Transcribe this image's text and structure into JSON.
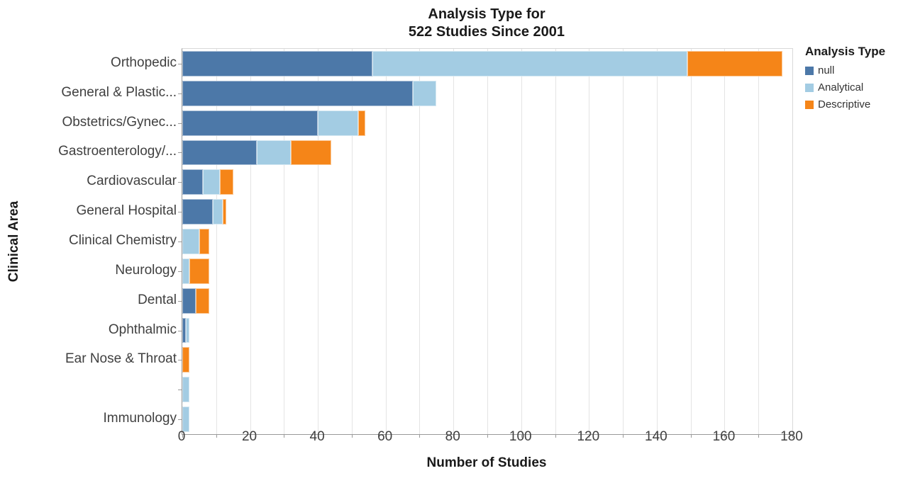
{
  "title": {
    "line1": "Analysis Type for",
    "line2": "522 Studies Since 2001"
  },
  "x_axis": {
    "title": "Number of Studies",
    "major_tick_labels": [
      "0",
      "20",
      "40",
      "60",
      "80",
      "100",
      "120",
      "140",
      "160",
      "180"
    ],
    "minor_tick_step": 10,
    "major_tick_step": 20
  },
  "y_axis": {
    "title": "Clinical Area"
  },
  "legend": {
    "title": "Analysis Type",
    "items": [
      {
        "label": "null",
        "color": "#4c78a8"
      },
      {
        "label": "Analytical",
        "color": "#a3cce3"
      },
      {
        "label": "Descriptive",
        "color": "#f58518"
      }
    ]
  },
  "chart_data": {
    "type": "bar",
    "orientation": "horizontal",
    "stacked": true,
    "title": "Analysis Type for 522 Studies Since 2001",
    "xlabel": "Number of Studies",
    "ylabel": "Clinical Area",
    "xlim": [
      0,
      180
    ],
    "grid": "vertical gridlines every 10 units",
    "legend_position": "top-right",
    "categories": [
      "Orthopedic",
      "General & Plastic...",
      "Obstetrics/Gynec...",
      "Gastroenterology/...",
      "Cardiovascular",
      "General Hospital",
      "Clinical Chemistry",
      "Neurology",
      "Dental",
      "Ophthalmic",
      "Ear Nose & Throat",
      "",
      "Immunology"
    ],
    "series": [
      {
        "name": "null",
        "color": "#4c78a8",
        "values": [
          56,
          68,
          40,
          22,
          6,
          9,
          0,
          0,
          4,
          1,
          0,
          0,
          0
        ]
      },
      {
        "name": "Analytical",
        "color": "#a3cce3",
        "values": [
          93,
          7,
          12,
          10,
          5,
          3,
          5,
          2,
          0,
          1,
          0,
          2,
          2
        ]
      },
      {
        "name": "Descriptive",
        "color": "#f58518",
        "values": [
          28,
          0,
          2,
          12,
          4,
          1,
          3,
          6,
          4,
          0,
          2,
          0,
          0
        ]
      }
    ]
  }
}
